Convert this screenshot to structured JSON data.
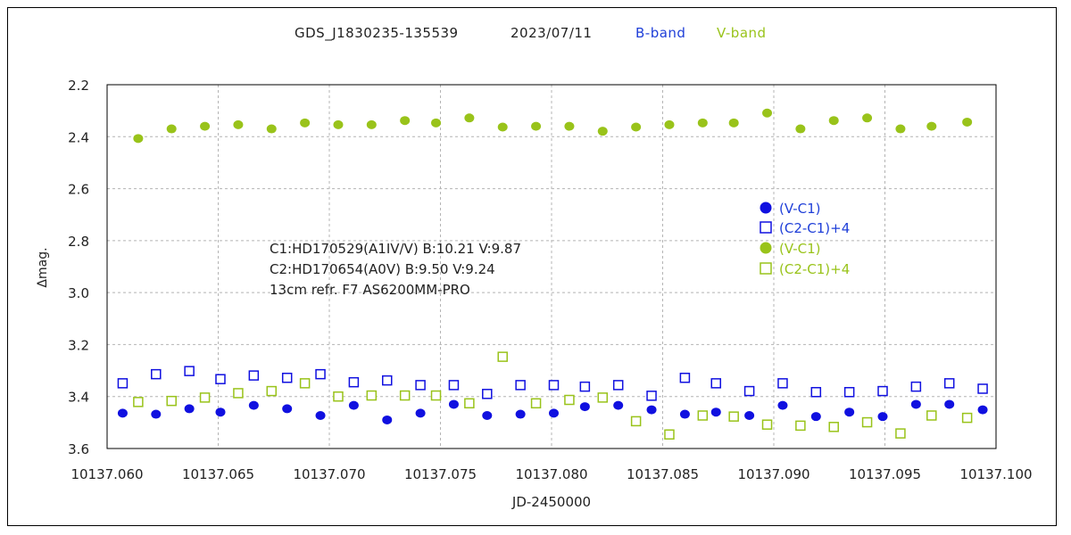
{
  "chart_data": {
    "type": "scatter",
    "title_parts": [
      {
        "text": "GDS_J1830235-135539",
        "color": "#222222"
      },
      {
        "text": "2023/07/11",
        "color": "#222222"
      },
      {
        "text": "B-band",
        "color": "#1f3fd8"
      },
      {
        "text": "V-band",
        "color": "#99c31a"
      }
    ],
    "xlabel": "JD-2450000",
    "ylabel": "Δmag.",
    "xlim": [
      10137.06,
      10137.1
    ],
    "ylim": [
      3.6,
      2.2
    ],
    "y_inverted": true,
    "grid": true,
    "x_ticks": [
      "10137.060",
      "10137.065",
      "10137.070",
      "10137.075",
      "10137.080",
      "10137.085",
      "10137.090",
      "10137.095",
      "10137.100"
    ],
    "y_ticks": [
      "2.2",
      "2.4",
      "2.6",
      "2.8",
      "3.0",
      "3.2",
      "3.4",
      "3.6"
    ],
    "annotations": [
      "C1:HD170529(A1IV/V)  B:10.21  V:9.87",
      "C2:HD170654(A0V)  B:9.50  V:9.24",
      "13cm refr. F7  AS6200MM-PRO"
    ],
    "legend_position": "right-center",
    "colors": {
      "blue": "#1010e0",
      "green": "#99c31a"
    },
    "series": [
      {
        "name": "(V-C1)",
        "band": "B",
        "marker": "filled-circle",
        "color": "#1010e0",
        "x": [
          10137.0607,
          10137.0622,
          10137.0637,
          10137.0651,
          10137.0666,
          10137.0681,
          10137.0696,
          10137.0711,
          10137.0726,
          10137.0741,
          10137.0756,
          10137.0771,
          10137.0786,
          10137.0801,
          10137.0815,
          10137.083,
          10137.0845,
          10137.086,
          10137.0874,
          10137.0889,
          10137.0904,
          10137.0919,
          10137.0934,
          10137.0949,
          10137.0964,
          10137.0979,
          10137.0994
        ],
        "y": [
          3.464,
          3.468,
          3.447,
          3.46,
          3.434,
          3.447,
          3.473,
          3.434,
          3.49,
          3.464,
          3.43,
          3.473,
          3.468,
          3.464,
          3.439,
          3.434,
          3.451,
          3.468,
          3.46,
          3.473,
          3.434,
          3.477,
          3.46,
          3.477,
          3.43,
          3.43,
          3.451
        ]
      },
      {
        "name": "(C2-C1)+4",
        "band": "B",
        "marker": "open-square",
        "color": "#1010e0",
        "x": [
          10137.0607,
          10137.0622,
          10137.0637,
          10137.0651,
          10137.0666,
          10137.0681,
          10137.0696,
          10137.0711,
          10137.0726,
          10137.0741,
          10137.0756,
          10137.0771,
          10137.0786,
          10137.0801,
          10137.0815,
          10137.083,
          10137.0845,
          10137.086,
          10137.0874,
          10137.0889,
          10137.0904,
          10137.0919,
          10137.0934,
          10137.0949,
          10137.0964,
          10137.0979,
          10137.0994
        ],
        "y": [
          3.349,
          3.314,
          3.302,
          3.333,
          3.319,
          3.328,
          3.314,
          3.345,
          3.338,
          3.356,
          3.356,
          3.39,
          3.356,
          3.356,
          3.362,
          3.356,
          3.397,
          3.328,
          3.349,
          3.379,
          3.349,
          3.383,
          3.383,
          3.379,
          3.362,
          3.349,
          3.37
        ]
      },
      {
        "name": "(V-C1)",
        "band": "V",
        "marker": "filled-circle",
        "color": "#99c31a",
        "x": [
          10137.0614,
          10137.0629,
          10137.0644,
          10137.0659,
          10137.0674,
          10137.0689,
          10137.0704,
          10137.0719,
          10137.0734,
          10137.0748,
          10137.0763,
          10137.0778,
          10137.0793,
          10137.0808,
          10137.0823,
          10137.0838,
          10137.0853,
          10137.0868,
          10137.0882,
          10137.0897,
          10137.0912,
          10137.0927,
          10137.0942,
          10137.0957,
          10137.0971,
          10137.0987
        ],
        "y": [
          2.407,
          2.37,
          2.36,
          2.354,
          2.37,
          2.347,
          2.354,
          2.354,
          2.338,
          2.347,
          2.328,
          2.363,
          2.36,
          2.36,
          2.379,
          2.363,
          2.354,
          2.347,
          2.347,
          2.309,
          2.37,
          2.338,
          2.328,
          2.37,
          2.36,
          2.344
        ]
      },
      {
        "name": "(C2-C1)+4",
        "band": "V",
        "marker": "open-square",
        "color": "#99c31a",
        "x": [
          10137.0614,
          10137.0629,
          10137.0644,
          10137.0659,
          10137.0674,
          10137.0689,
          10137.0704,
          10137.0719,
          10137.0734,
          10137.0748,
          10137.0763,
          10137.0778,
          10137.0793,
          10137.0808,
          10137.0823,
          10137.0838,
          10137.0853,
          10137.0868,
          10137.0882,
          10137.0897,
          10137.0912,
          10137.0927,
          10137.0942,
          10137.0957,
          10137.0971,
          10137.0987
        ],
        "y": [
          3.421,
          3.417,
          3.404,
          3.387,
          3.379,
          3.349,
          3.4,
          3.396,
          3.396,
          3.396,
          3.426,
          3.247,
          3.426,
          3.413,
          3.404,
          3.495,
          3.546,
          3.473,
          3.477,
          3.508,
          3.512,
          3.517,
          3.499,
          3.542,
          3.473,
          3.482
        ]
      }
    ]
  }
}
